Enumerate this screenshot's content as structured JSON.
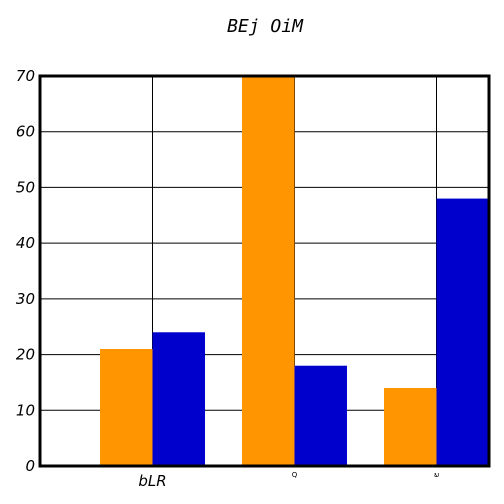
{
  "chart_data": {
    "type": "bar",
    "title": "BEj  OiM",
    "categories": [
      "bLR",
      "Q",
      "ພ"
    ],
    "series": [
      {
        "values": [
          21,
          70,
          14
        ],
        "color": "#ff9500"
      },
      {
        "values": [
          24,
          18,
          48
        ],
        "color": "#0000cc"
      }
    ],
    "ylim": [
      0,
      70
    ],
    "yticks": [
      0,
      10,
      20,
      30,
      40,
      50,
      60,
      70
    ],
    "grid": true
  }
}
